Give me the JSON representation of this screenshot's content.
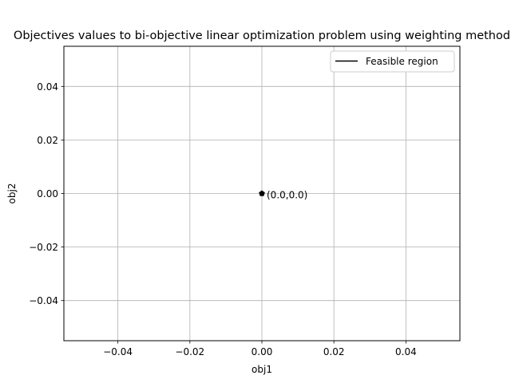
{
  "chart_data": {
    "type": "scatter",
    "title": "Objectives values to bi-objective linear optimization problem using weighting method",
    "xlabel": "obj1",
    "ylabel": "obj2",
    "xlim": [
      -0.055,
      0.055
    ],
    "ylim": [
      -0.055,
      0.055
    ],
    "x_ticks": [
      -0.04,
      -0.02,
      0.0,
      0.02,
      0.04
    ],
    "x_tick_labels": [
      "−0.04",
      "−0.02",
      "0.00",
      "0.02",
      "0.04"
    ],
    "y_ticks": [
      -0.04,
      -0.02,
      0.0,
      0.02,
      0.04
    ],
    "y_tick_labels": [
      "−0.04",
      "−0.02",
      "0.00",
      "0.02",
      "0.04"
    ],
    "grid": true,
    "legend": {
      "position": "top-right",
      "entries": [
        {
          "label": "Feasible region",
          "color": "#000000",
          "marker": "line"
        }
      ]
    },
    "series": [
      {
        "name": "Feasible region",
        "color": "#000000",
        "x": [
          0.0
        ],
        "y": [
          0.0
        ]
      }
    ],
    "points": [
      {
        "x": 0.0,
        "y": 0.0,
        "label": "(0.0,0.0)"
      }
    ]
  }
}
